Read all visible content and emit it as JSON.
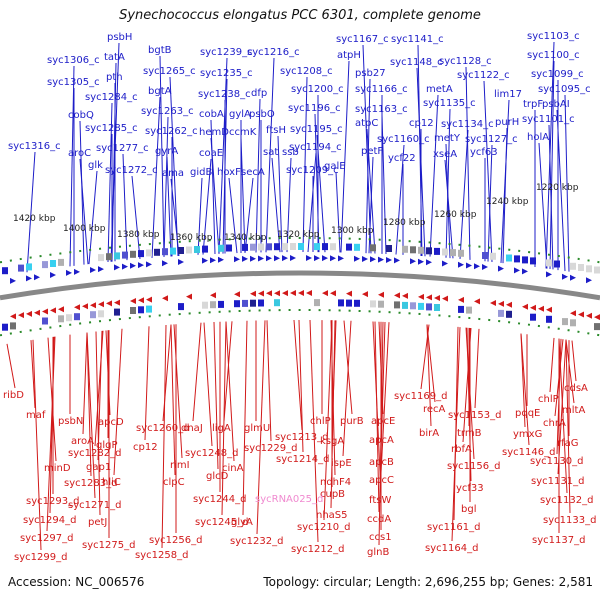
{
  "header": {
    "title": "Synechococcus elongatus PCC 6301, complete genome"
  },
  "footer": {
    "accession": "Accession: NC_006576",
    "stats": "Topology: circular; Length: 2,696,255 bp; Genes: 2,581"
  },
  "scale_labels": [
    "1420 kbp",
    "1400 kbp",
    "1380 kbp",
    "1360 kbp",
    "1340 kbp",
    "1320 kbp",
    "1300 kbp",
    "1280 kbp",
    "1260 kbp",
    "1240 kbp",
    "1220 kbp"
  ],
  "colors": {
    "forward_gene": "#1d1dc8",
    "reverse_gene": "#d11a1a",
    "rna_gene": "#f08ad0",
    "backbone": "#888888",
    "tick": "#2a8a2a"
  },
  "top_genes": [
    "syc1316_c",
    "syc1306_c",
    "syc1305_c",
    "cobQ",
    "aroC",
    "glk",
    "syc1284_c",
    "syc1285_c",
    "syc1277_c",
    "syc1272_c",
    "psbH",
    "tatA",
    "pth",
    "bgtB",
    "syc1265_c",
    "bgtA",
    "syc1263_c",
    "syc1262_c",
    "gyrA",
    "ama",
    "syc1239_c",
    "syc1235_c",
    "syc1238_c",
    "cobA",
    "hemD",
    "coaE",
    "gidB",
    "gylA",
    "ccmK",
    "hoxF",
    "syc1216_c",
    "dfp",
    "psbO",
    "ftsH",
    "sat",
    "secA",
    "syc1208_c",
    "syc1200_c",
    "syc1196_c",
    "syc1195_c",
    "syc1194_c",
    "ssb",
    "syc1209_c",
    "galE",
    "syc1167_c",
    "atpH",
    "psb27",
    "syc1166_c",
    "syc1163_c",
    "atpC",
    "syc1160_c",
    "petF",
    "ycf22",
    "syc1141_c",
    "syc1148_c",
    "metA",
    "syc1135_c",
    "cp12",
    "metY",
    "xseA",
    "syc1134_c",
    "syc1127_c",
    "ycf63",
    "syc1128_c",
    "syc1122_c",
    "syc1103_c",
    "syc1100_c",
    "syc1099_c",
    "syc1095_c",
    "psbAI",
    "lim17",
    "purH",
    "trpF",
    "syc1101_c",
    "holA"
  ],
  "bottom_genes": [
    "ribD",
    "maf",
    "psbN",
    "aroA",
    "syc1282_d",
    "minD",
    "syc1283_d",
    "syc1293_d",
    "syc1294_d",
    "syc1297_d",
    "syc1299_d",
    "apcD",
    "glgP",
    "gap1",
    "hliC",
    "syc1271_d",
    "petJ",
    "syc1275_d",
    "cp12",
    "syc1260_d",
    "rimI",
    "clpC",
    "syc1256_d",
    "syc1258_d",
    "dnaJ",
    "syc1248_d",
    "glcD",
    "syc1244_d",
    "syc1245_d",
    "ligA",
    "cinA",
    "syc1229_d",
    "glmU",
    "glyA",
    "syc1232_d",
    "syc1213_d",
    "syc1214_d",
    "chlP",
    "ksgA",
    "ispE",
    "purB",
    "ndhF4",
    "cupB",
    "nhaS5",
    "syc1210_d",
    "syc1212_d",
    "apcE",
    "apcA",
    "apcB",
    "apcC",
    "ftsW",
    "ccdA",
    "ccs1",
    "glnB",
    "syc1169_d",
    "recA",
    "birA",
    "trmB",
    "syc1153_d",
    "rbfA",
    "syc1156_d",
    "ycf33",
    "bgl",
    "syc1161_d",
    "syc1164_d",
    "syc1146_d",
    "ymxG",
    "pqqE",
    "chlP",
    "chrA",
    "mltA",
    "cdsA",
    "rfaG",
    "syc1130_d",
    "syc1131_d",
    "syc1132_d",
    "syc1133_d",
    "syc1137_d"
  ],
  "rna_genes": [
    "sycRNA025_d"
  ]
}
